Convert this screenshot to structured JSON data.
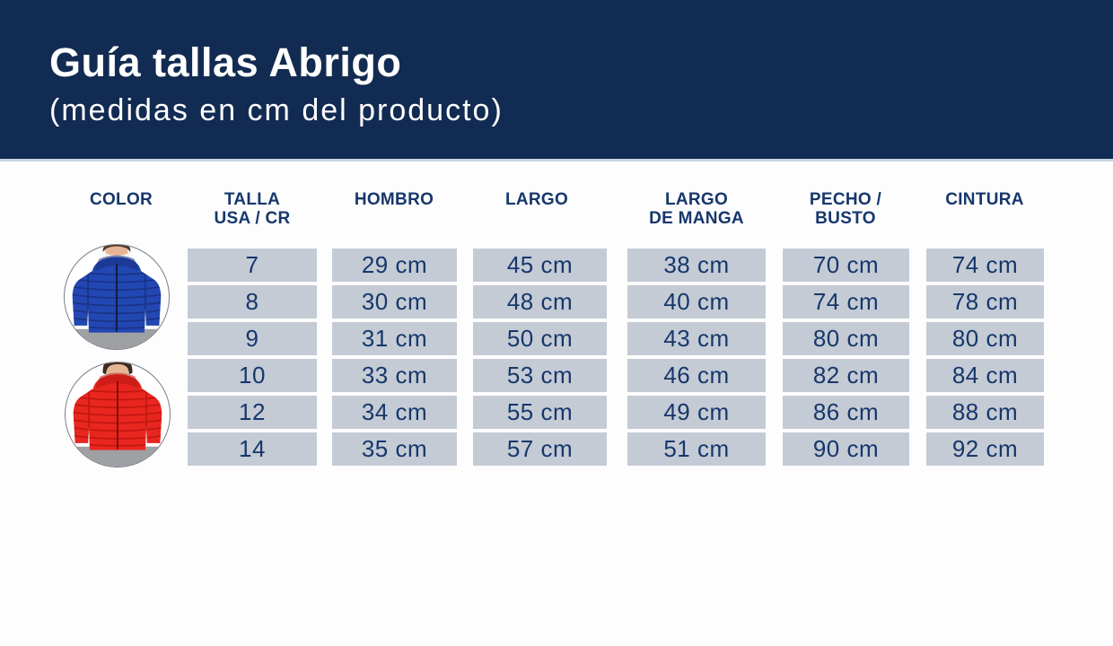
{
  "page": {
    "title": "Guía tallas Abrigo",
    "subtitle": "(medidas en cm del producto)"
  },
  "colors": {
    "banner_bg": "#122B52",
    "text_navy": "#16376B",
    "cell_bg": "#C4CBD5",
    "divider": "#C7D2E0",
    "jacket_blue": "#2347B2",
    "jacket_blue_dark": "#17307E",
    "jacket_red": "#E8261F",
    "jacket_red_dark": "#B81410"
  },
  "table": {
    "columns": [
      {
        "id": "color",
        "label": "COLOR"
      },
      {
        "id": "size",
        "label": "TALLA\nUSA / CR"
      },
      {
        "id": "hombro",
        "label": "HOMBRO"
      },
      {
        "id": "largo",
        "label": "LARGO"
      },
      {
        "id": "manga",
        "label": "LARGO\nDE MANGA"
      },
      {
        "id": "pecho",
        "label": "PECHO /\nBUSTO"
      },
      {
        "id": "cintura",
        "label": "CINTURA"
      }
    ],
    "rows": [
      {
        "size": "7",
        "hombro": "29 cm",
        "largo": "45 cm",
        "manga": "38 cm",
        "pecho": "70 cm",
        "cintura": "74 cm"
      },
      {
        "size": "8",
        "hombro": "30 cm",
        "largo": "48 cm",
        "manga": "40 cm",
        "pecho": "74 cm",
        "cintura": "78 cm"
      },
      {
        "size": "9",
        "hombro": "31 cm",
        "largo": "50 cm",
        "manga": "43 cm",
        "pecho": "80 cm",
        "cintura": "80 cm"
      },
      {
        "size": "10",
        "hombro": "33 cm",
        "largo": "53 cm",
        "manga": "46 cm",
        "pecho": "82 cm",
        "cintura": "84 cm"
      },
      {
        "size": "12",
        "hombro": "34 cm",
        "largo": "55 cm",
        "manga": "49 cm",
        "pecho": "86 cm",
        "cintura": "88 cm"
      },
      {
        "size": "14",
        "hombro": "35 cm",
        "largo": "57 cm",
        "manga": "51 cm",
        "pecho": "90 cm",
        "cintura": "92 cm"
      }
    ],
    "products": [
      {
        "id": "blue-jacket",
        "color_name": "azul"
      },
      {
        "id": "red-jacket",
        "color_name": "rojo"
      }
    ]
  }
}
